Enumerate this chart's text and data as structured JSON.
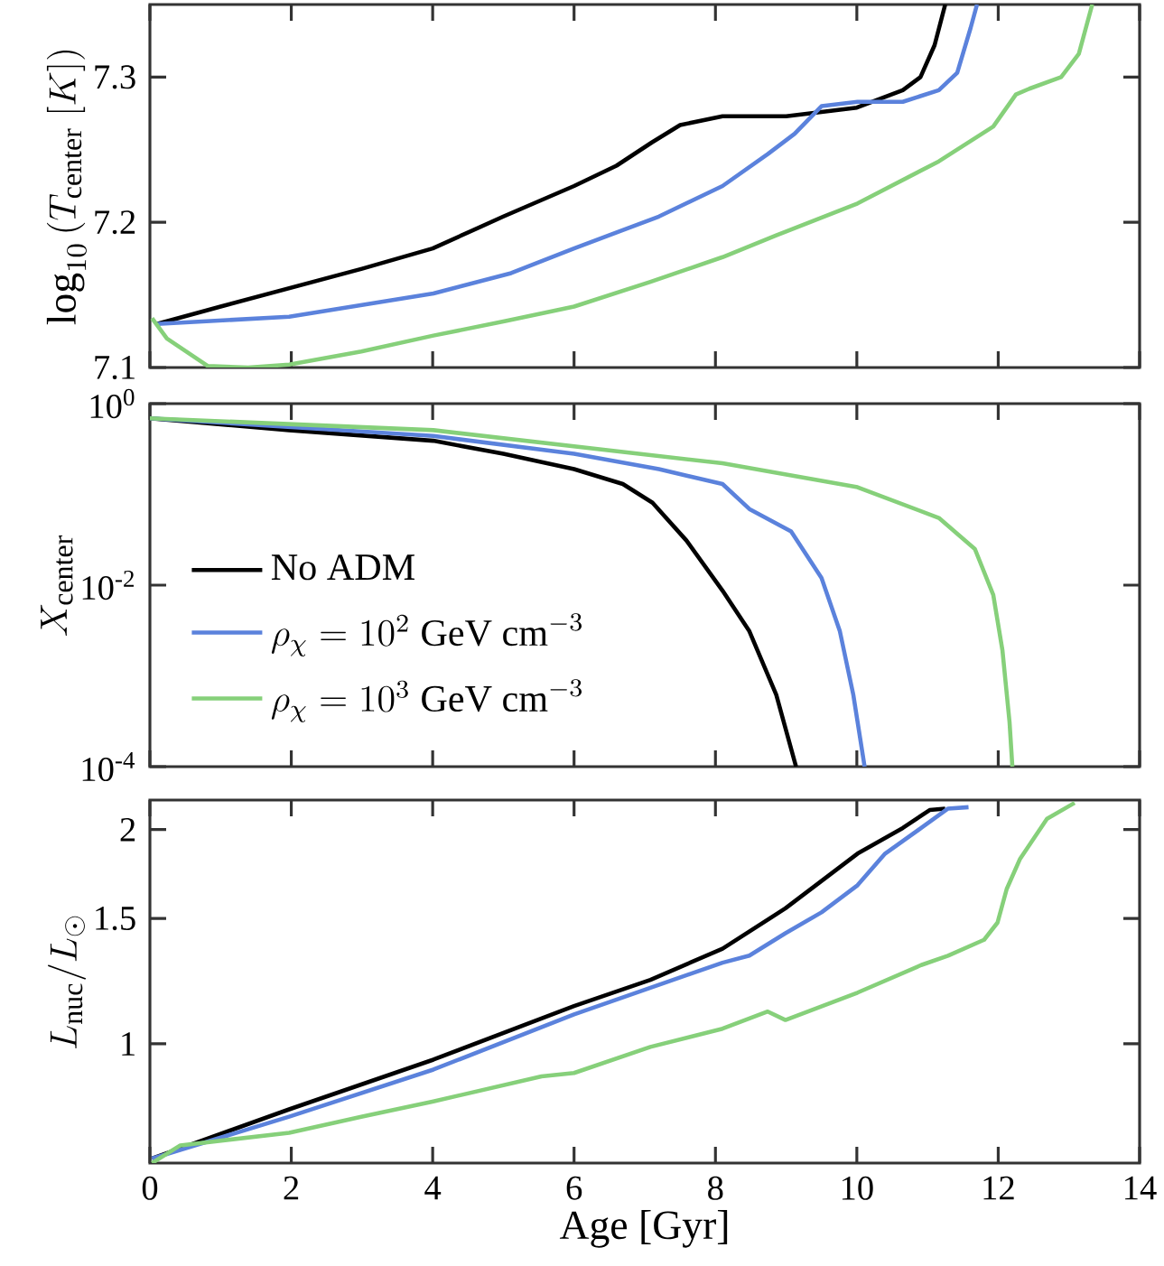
{
  "chart_data": [
    {
      "type": "line",
      "ylabel": "\\log_{10}\\left(T_{\\rm center}\\ [K]\\right)",
      "xlim": [
        0,
        14
      ],
      "xticks": [
        0,
        2,
        4,
        6,
        8,
        10,
        12,
        14
      ],
      "ylim": [
        7.1,
        7.35
      ],
      "yticks": [
        7.1,
        7.2,
        7.3
      ],
      "tick_labels": "y",
      "marker": "none",
      "series": [
        {
          "color": "#000000",
          "x": [
            0.1,
            1.0,
            2.0,
            3.0,
            4.0,
            5.0,
            6.0,
            6.6,
            7.1,
            7.5,
            8.1,
            9.0,
            10.0,
            10.65,
            10.9,
            11.1,
            11.25
          ],
          "values": [
            7.13,
            7.142,
            7.155,
            7.168,
            7.182,
            7.204,
            7.225,
            7.239,
            7.255,
            7.267,
            7.273,
            7.273,
            7.279,
            7.291,
            7.3,
            7.322,
            7.35
          ]
        },
        {
          "color": "#5b82dc",
          "x": [
            0.1,
            1.97,
            4.01,
            5.11,
            6.0,
            7.2,
            8.1,
            8.74,
            9.12,
            9.5,
            10.01,
            10.65,
            11.16,
            11.42,
            11.61,
            11.7
          ],
          "values": [
            7.13,
            7.135,
            7.151,
            7.165,
            7.182,
            7.204,
            7.225,
            7.247,
            7.261,
            7.28,
            7.283,
            7.283,
            7.291,
            7.303,
            7.334,
            7.35
          ]
        },
        {
          "color": "#86d07a",
          "x": [
            0.03,
            0.24,
            0.82,
            1.39,
            1.97,
            2.99,
            4.01,
            5.03,
            6.0,
            7.08,
            8.1,
            8.86,
            10.01,
            11.16,
            11.93,
            12.25,
            12.44,
            12.89,
            13.14,
            13.33
          ],
          "values": [
            7.134,
            7.12,
            7.101,
            7.1,
            7.102,
            7.111,
            7.122,
            7.132,
            7.142,
            7.159,
            7.176,
            7.191,
            7.213,
            7.242,
            7.266,
            7.288,
            7.292,
            7.3,
            7.316,
            7.35
          ]
        }
      ]
    },
    {
      "type": "line",
      "ylabel": "X_{\\rm center}",
      "xlim": [
        0,
        14
      ],
      "xticks": [
        0,
        2,
        4,
        6,
        8,
        10,
        12,
        14
      ],
      "ylim": [
        0.0001,
        1
      ],
      "yticks": [
        {
          "value": 0.0001,
          "label": "10$^{-4}$"
        },
        {
          "value": 0.01,
          "label": "10$^{-2}$"
        },
        {
          "value": 1,
          "label": "10$^{0}$"
        }
      ],
      "log": true,
      "tick_labels": "y",
      "marker": "none",
      "legend": "bottom left",
      "series": [
        {
          "name": "\\mathrm{No\\ ADM}",
          "color": "#000000",
          "x": [
            0,
            1.97,
            4.01,
            5.0,
            6.0,
            6.69,
            7.11,
            7.59,
            8.1,
            8.48,
            8.86,
            9.14
          ],
          "values": [
            0.69,
            0.51,
            0.39,
            0.28,
            0.19,
            0.13,
            0.081,
            0.031,
            0.0087,
            0.0031,
            0.00062,
            0.0001
          ]
        },
        {
          "name": "\\rho_\\chi = 10^2\\ \\mathrm{GeV\\ cm}^{-3}",
          "color": "#5b82dc",
          "x": [
            0,
            4.01,
            6.0,
            7.2,
            8.1,
            8.48,
            9.07,
            9.5,
            9.76,
            9.95,
            10.11
          ],
          "values": [
            0.69,
            0.44,
            0.28,
            0.19,
            0.13,
            0.069,
            0.039,
            0.012,
            0.0031,
            0.00062,
            0.0001
          ]
        },
        {
          "name": "\\rho_\\chi = 10^3\\ \\mathrm{GeV\\ cm}^{-3}",
          "color": "#86d07a",
          "x": [
            0,
            4.01,
            8.1,
            10.01,
            11.16,
            11.67,
            11.93,
            12.06,
            12.16,
            12.2
          ],
          "values": [
            0.69,
            0.51,
            0.22,
            0.12,
            0.055,
            0.025,
            0.0078,
            0.0019,
            0.00031,
            0.0001
          ]
        }
      ]
    },
    {
      "type": "line",
      "xlabel": "Age [Gyr]",
      "ylabel": "L_{\\rm nuc}/L_{\\odot}",
      "xlim": [
        0,
        14
      ],
      "xticks": [
        0,
        2,
        4,
        6,
        8,
        10,
        12,
        14
      ],
      "ylim": [
        0.68,
        2.2
      ],
      "yticks": [
        1,
        1.5,
        2
      ],
      "log": true,
      "marker": "none",
      "series": [
        {
          "color": "#000000",
          "x": [
            0.03,
            1.97,
            4.01,
            6.0,
            7.08,
            8.1,
            8.99,
            10.01,
            10.65,
            11.03,
            11.25
          ],
          "values": [
            0.69,
            0.809,
            0.95,
            1.13,
            1.23,
            1.36,
            1.55,
            1.85,
            2.01,
            2.13,
            2.14
          ]
        },
        {
          "color": "#5b82dc",
          "x": [
            0.03,
            1.97,
            4.01,
            6.0,
            8.1,
            8.48,
            8.99,
            9.5,
            10.01,
            10.4,
            10.91,
            11.29,
            11.58
          ],
          "values": [
            0.69,
            0.79,
            0.92,
            1.1,
            1.3,
            1.33,
            1.43,
            1.53,
            1.67,
            1.85,
            2.01,
            2.14,
            2.15
          ]
        },
        {
          "color": "#86d07a",
          "x": [
            0.03,
            0.43,
            1.97,
            2.99,
            4.01,
            5.54,
            6.0,
            7.08,
            8.1,
            8.74,
            8.99,
            10.01,
            10.91,
            11.29,
            11.8,
            11.99,
            12.12,
            12.31,
            12.69,
            13.08
          ],
          "values": [
            0.68,
            0.72,
            0.75,
            0.79,
            0.83,
            0.9,
            0.91,
            0.99,
            1.05,
            1.11,
            1.08,
            1.18,
            1.29,
            1.33,
            1.4,
            1.48,
            1.65,
            1.82,
            2.07,
            2.18
          ]
        }
      ]
    }
  ]
}
